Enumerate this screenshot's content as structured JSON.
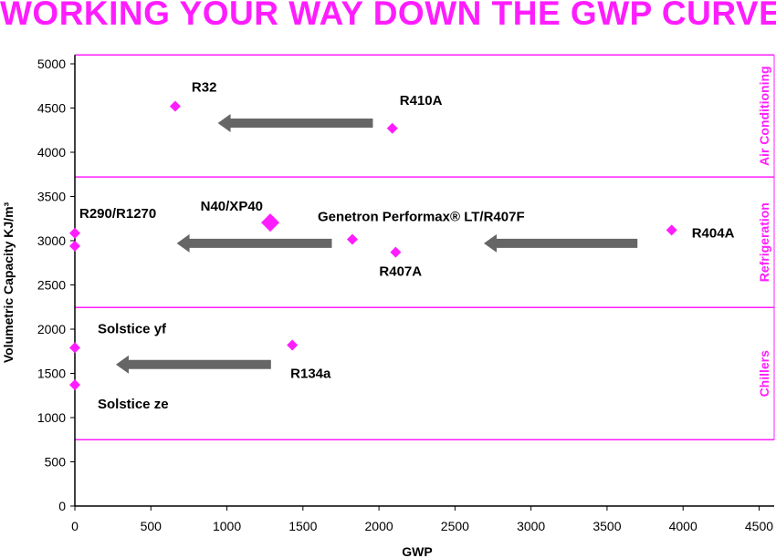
{
  "chart_data": {
    "type": "scatter",
    "title": "WORKING YOUR WAY DOWN THE GWP CURVE",
    "xlabel": "GWP",
    "ylabel": "Volumetric Capacity  KJ/m³",
    "xlim": [
      0,
      4600
    ],
    "ylim": [
      0,
      5100
    ],
    "xticks": [
      0,
      500,
      1000,
      1500,
      2000,
      2500,
      3000,
      3500,
      4000,
      4500
    ],
    "yticks": [
      0,
      500,
      1000,
      1500,
      2000,
      2500,
      3000,
      3500,
      4000,
      4500,
      5000
    ],
    "grid": false,
    "points": [
      {
        "label": "R32",
        "x": 660,
        "y": 4520
      },
      {
        "label": "R410A",
        "x": 2088,
        "y": 4270
      },
      {
        "label": "R290/R1270",
        "x": 0,
        "y": 3085
      },
      {
        "label": "",
        "x": 0,
        "y": 2940
      },
      {
        "label": "N40/XP40",
        "x": 1285,
        "y": 3205,
        "large": true
      },
      {
        "label": "Genetron Performax® LT/R407F",
        "x": 1825,
        "y": 3015
      },
      {
        "label": "R407A",
        "x": 2110,
        "y": 2870
      },
      {
        "label": "R404A",
        "x": 3925,
        "y": 3120
      },
      {
        "label": "Solstice yf",
        "x": 0,
        "y": 1790
      },
      {
        "label": "Solstice ze",
        "x": 0,
        "y": 1370
      },
      {
        "label": "R134a",
        "x": 1430,
        "y": 1820
      }
    ],
    "arrows": [
      {
        "from": [
          1960,
          4330
        ],
        "to": [
          940,
          4330
        ]
      },
      {
        "from": [
          1690,
          2970
        ],
        "to": [
          670,
          2970
        ]
      },
      {
        "from": [
          3700,
          2970
        ],
        "to": [
          2690,
          2970
        ]
      },
      {
        "from": [
          1290,
          1600
        ],
        "to": [
          270,
          1600
        ]
      }
    ],
    "regions": [
      {
        "label": "Air Conditioning",
        "from": 3720,
        "to": 5100
      },
      {
        "label": "Refrigeration",
        "from": 2245,
        "to": 3720
      },
      {
        "label": "Chillers",
        "from": 750,
        "to": 2245
      }
    ],
    "colors": {
      "marker": "#ff1dff",
      "arrow": "#666666",
      "region": "#ff1dff",
      "title": "#ff1dff"
    }
  }
}
